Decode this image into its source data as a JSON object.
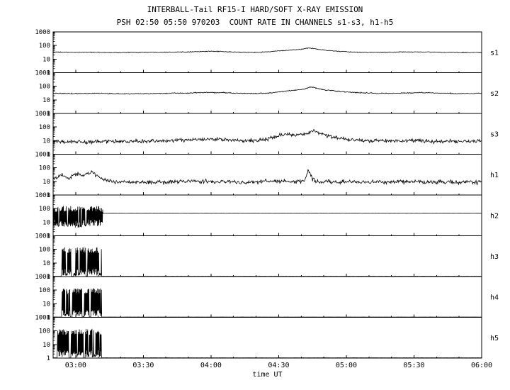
{
  "colors": {
    "ink": "#000000",
    "background": "#ffffff"
  },
  "chart_data": {
    "type": "line",
    "title": "INTERBALL-Tail RF15-I HARD/SOFT X-RAY EMISSION",
    "subtitle": "PSH 02:50 05:50 970203  COUNT RATE IN CHANNELS s1-s3, h1-h5",
    "xlabel": "time UT",
    "x_unit": "minutes after 02:50 UT",
    "x_range": [
      0,
      190
    ],
    "x_ticks": [
      {
        "t": 10,
        "label": "03:00"
      },
      {
        "t": 40,
        "label": "03:30"
      },
      {
        "t": 70,
        "label": "04:00"
      },
      {
        "t": 100,
        "label": "04:30"
      },
      {
        "t": 130,
        "label": "05:00"
      },
      {
        "t": 160,
        "label": "05:30"
      },
      {
        "t": 190,
        "label": "06:00"
      }
    ],
    "x_minor_step": 10,
    "yscale": "log",
    "ylim": [
      1,
      1000
    ],
    "y_ticks": [
      {
        "v": 1000,
        "label": "1000"
      },
      {
        "v": 100,
        "label": "100"
      },
      {
        "v": 10,
        "label": "10"
      },
      {
        "v": 1,
        "label": "1"
      }
    ],
    "legend": "none",
    "grid": false,
    "panels": [
      {
        "label": "s1",
        "type": "soft-channel",
        "noise": 0.035,
        "points": [
          [
            0,
            33
          ],
          [
            8,
            31
          ],
          [
            15,
            32
          ],
          [
            25,
            30
          ],
          [
            35,
            31
          ],
          [
            45,
            32
          ],
          [
            55,
            33
          ],
          [
            65,
            36
          ],
          [
            72,
            37
          ],
          [
            80,
            33
          ],
          [
            88,
            31
          ],
          [
            95,
            34
          ],
          [
            100,
            40
          ],
          [
            106,
            46
          ],
          [
            110,
            52
          ],
          [
            113,
            66
          ],
          [
            116,
            58
          ],
          [
            120,
            46
          ],
          [
            126,
            38
          ],
          [
            132,
            33
          ],
          [
            140,
            31
          ],
          [
            150,
            32
          ],
          [
            158,
            34
          ],
          [
            166,
            33
          ],
          [
            175,
            31
          ],
          [
            183,
            30
          ],
          [
            190,
            31
          ]
        ]
      },
      {
        "label": "s2",
        "type": "soft-channel",
        "noise": 0.045,
        "points": [
          [
            0,
            30
          ],
          [
            10,
            29
          ],
          [
            20,
            30
          ],
          [
            30,
            28
          ],
          [
            40,
            29
          ],
          [
            50,
            30
          ],
          [
            60,
            32
          ],
          [
            68,
            35
          ],
          [
            75,
            34
          ],
          [
            82,
            31
          ],
          [
            90,
            29
          ],
          [
            96,
            32
          ],
          [
            102,
            42
          ],
          [
            107,
            50
          ],
          [
            111,
            60
          ],
          [
            114,
            88
          ],
          [
            117,
            70
          ],
          [
            121,
            52
          ],
          [
            127,
            42
          ],
          [
            133,
            35
          ],
          [
            140,
            31
          ],
          [
            148,
            30
          ],
          [
            156,
            32
          ],
          [
            163,
            34
          ],
          [
            170,
            32
          ],
          [
            180,
            29
          ],
          [
            190,
            30
          ]
        ]
      },
      {
        "label": "s3",
        "type": "soft-channel",
        "noise": 0.16,
        "points": [
          [
            0,
            9
          ],
          [
            10,
            8
          ],
          [
            20,
            8.5
          ],
          [
            30,
            9
          ],
          [
            40,
            9
          ],
          [
            50,
            10
          ],
          [
            60,
            11
          ],
          [
            68,
            13
          ],
          [
            75,
            12
          ],
          [
            82,
            10
          ],
          [
            90,
            10
          ],
          [
            96,
            14
          ],
          [
            100,
            24
          ],
          [
            104,
            30
          ],
          [
            107,
            26
          ],
          [
            110,
            28
          ],
          [
            113,
            32
          ],
          [
            115,
            58
          ],
          [
            118,
            38
          ],
          [
            122,
            22
          ],
          [
            127,
            15
          ],
          [
            132,
            12
          ],
          [
            140,
            10
          ],
          [
            150,
            9
          ],
          [
            160,
            10
          ],
          [
            170,
            9
          ],
          [
            180,
            9
          ],
          [
            190,
            9
          ]
        ]
      },
      {
        "label": "h1",
        "type": "hard-channel",
        "noise": 0.18,
        "points": [
          [
            0,
            14
          ],
          [
            2,
            20
          ],
          [
            4,
            35
          ],
          [
            5,
            25
          ],
          [
            7,
            18
          ],
          [
            9,
            28
          ],
          [
            11,
            42
          ],
          [
            12,
            30
          ],
          [
            14,
            25
          ],
          [
            16,
            38
          ],
          [
            17,
            55
          ],
          [
            18,
            40
          ],
          [
            20,
            22
          ],
          [
            22,
            14
          ],
          [
            24,
            11
          ],
          [
            28,
            9
          ],
          [
            35,
            9
          ],
          [
            45,
            9
          ],
          [
            55,
            10
          ],
          [
            65,
            10
          ],
          [
            75,
            10
          ],
          [
            85,
            9
          ],
          [
            95,
            10
          ],
          [
            105,
            10
          ],
          [
            110,
            10
          ],
          [
            112,
            18
          ],
          [
            113,
            75
          ],
          [
            114,
            30
          ],
          [
            115,
            14
          ],
          [
            117,
            10
          ],
          [
            125,
            9
          ],
          [
            135,
            9
          ],
          [
            145,
            9
          ],
          [
            155,
            10
          ],
          [
            165,
            9
          ],
          [
            175,
            9
          ],
          [
            185,
            9
          ],
          [
            190,
            9
          ]
        ]
      },
      {
        "label": "h2",
        "type": "hard-channel",
        "noise": 0.004,
        "gap_value": 5,
        "points": [
          [
            0,
            45
          ],
          [
            190,
            45
          ]
        ],
        "blobs": [
          {
            "t0": 0,
            "t1": 2.2,
            "low": 5,
            "high": 90
          },
          {
            "t0": 2.8,
            "t1": 6.2,
            "low": 4,
            "high": 95
          },
          {
            "t0": 6.8,
            "t1": 12.2,
            "low": 4,
            "high": 95
          },
          {
            "t0": 12.8,
            "t1": 22,
            "low": 5,
            "high": 90
          }
        ]
      },
      {
        "label": "h3",
        "type": "hard-channel",
        "noise": 0.004,
        "gap_value": 1.05,
        "points": [
          [
            0,
            1.05
          ],
          [
            190,
            1.05
          ]
        ],
        "blobs": [
          {
            "t0": 4,
            "t1": 8,
            "low": 1.2,
            "high": 85
          },
          {
            "t0": 9,
            "t1": 14.5,
            "low": 1.2,
            "high": 85
          },
          {
            "t0": 15.2,
            "t1": 21.5,
            "low": 1.2,
            "high": 85
          }
        ]
      },
      {
        "label": "h4",
        "type": "hard-channel",
        "noise": 0.004,
        "gap_value": 1.05,
        "points": [
          [
            0,
            1.05
          ],
          [
            190,
            1.05
          ]
        ],
        "blobs": [
          {
            "t0": 4,
            "t1": 7.5,
            "low": 1.2,
            "high": 80
          },
          {
            "t0": 8.5,
            "t1": 12.8,
            "low": 1.2,
            "high": 80
          },
          {
            "t0": 13.8,
            "t1": 16,
            "low": 1.2,
            "high": 80
          },
          {
            "t0": 16.8,
            "t1": 21.5,
            "low": 1.2,
            "high": 80
          }
        ]
      },
      {
        "label": "h5",
        "type": "hard-channel",
        "noise": 0.004,
        "gap_value": 1.05,
        "points": [
          [
            0,
            1.05
          ],
          [
            190,
            1.05
          ]
        ],
        "blobs": [
          {
            "t0": 2,
            "t1": 7,
            "low": 1.2,
            "high": 85
          },
          {
            "t0": 8,
            "t1": 13.5,
            "low": 1.2,
            "high": 85
          },
          {
            "t0": 14.3,
            "t1": 21.5,
            "low": 1.2,
            "high": 85
          }
        ]
      }
    ]
  }
}
